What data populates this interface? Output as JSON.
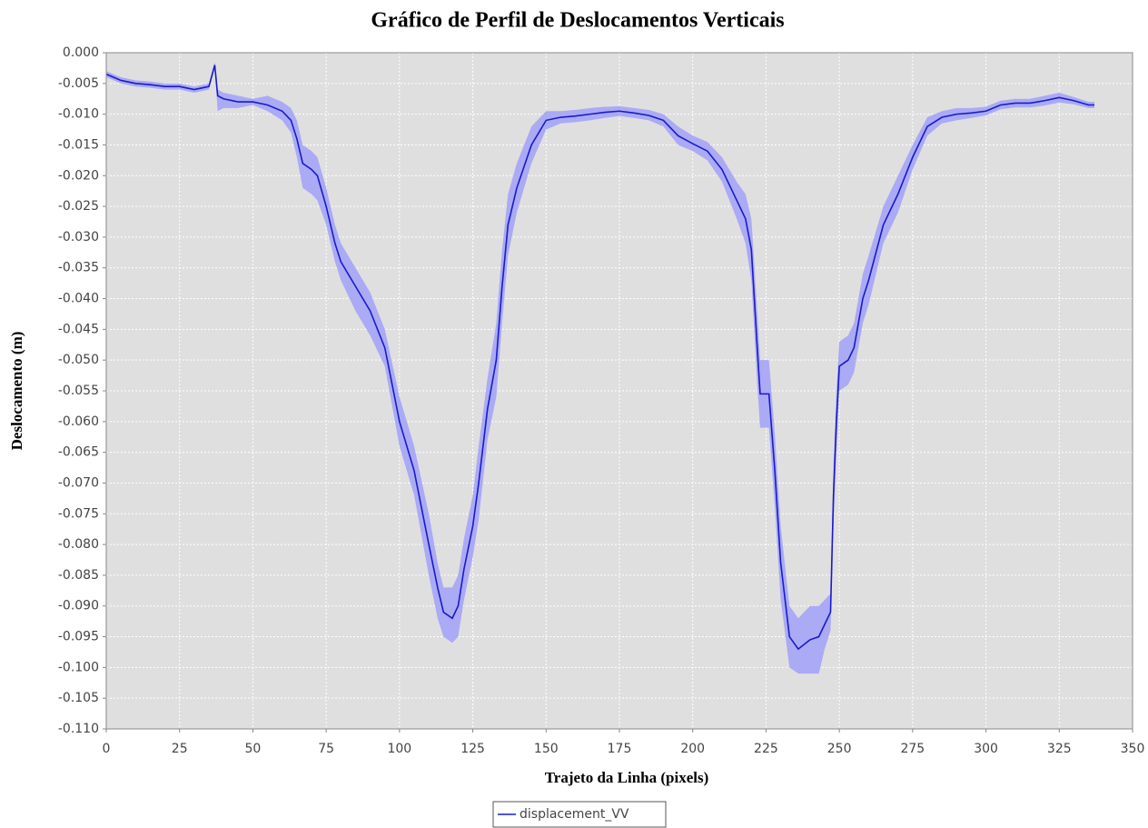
{
  "chart_data": {
    "type": "line",
    "title": "Gráfico de Perfil de Deslocamentos Verticais",
    "xlabel": "Trajeto da Linha (pixels)",
    "ylabel": "Deslocamento (m)",
    "x": [
      0,
      5,
      10,
      15,
      20,
      25,
      30,
      35,
      37,
      38,
      40,
      45,
      50,
      55,
      60,
      63,
      65,
      67,
      70,
      72,
      75,
      78,
      80,
      85,
      90,
      95,
      100,
      105,
      110,
      113,
      115,
      118,
      120,
      122,
      125,
      127,
      130,
      133,
      135,
      137,
      140,
      145,
      150,
      155,
      160,
      165,
      170,
      175,
      180,
      185,
      190,
      195,
      200,
      205,
      210,
      215,
      218,
      220,
      222,
      223,
      226,
      228,
      230,
      233,
      236,
      240,
      243,
      245,
      247,
      248,
      249,
      250,
      253,
      255,
      258,
      260,
      265,
      270,
      275,
      280,
      285,
      290,
      295,
      300,
      305,
      310,
      315,
      320,
      325,
      330,
      335,
      337
    ],
    "series": [
      {
        "name": "displacement_VV",
        "color": "#1a1acc",
        "band_color": "#aaaaf5",
        "values": [
          -0.0035,
          -0.0045,
          -0.005,
          -0.0052,
          -0.0055,
          -0.0055,
          -0.006,
          -0.0055,
          -0.002,
          -0.007,
          -0.0075,
          -0.008,
          -0.008,
          -0.0085,
          -0.0095,
          -0.011,
          -0.014,
          -0.018,
          -0.019,
          -0.02,
          -0.025,
          -0.031,
          -0.034,
          -0.038,
          -0.042,
          -0.048,
          -0.06,
          -0.068,
          -0.08,
          -0.087,
          -0.091,
          -0.092,
          -0.09,
          -0.084,
          -0.077,
          -0.07,
          -0.058,
          -0.05,
          -0.038,
          -0.028,
          -0.022,
          -0.015,
          -0.011,
          -0.0105,
          -0.0103,
          -0.01,
          -0.0097,
          -0.0095,
          -0.0098,
          -0.0102,
          -0.011,
          -0.0135,
          -0.0148,
          -0.016,
          -0.019,
          -0.024,
          -0.027,
          -0.032,
          -0.048,
          -0.0555,
          -0.0555,
          -0.068,
          -0.083,
          -0.095,
          -0.097,
          -0.0955,
          -0.095,
          -0.093,
          -0.091,
          -0.072,
          -0.06,
          -0.051,
          -0.05,
          -0.048,
          -0.04,
          -0.037,
          -0.028,
          -0.023,
          -0.017,
          -0.012,
          -0.0105,
          -0.01,
          -0.0098,
          -0.0095,
          -0.0085,
          -0.0082,
          -0.0082,
          -0.0078,
          -0.0073,
          -0.0078,
          -0.0085,
          -0.0085
        ],
        "upper": [
          -0.003,
          -0.004,
          -0.0045,
          -0.0047,
          -0.005,
          -0.005,
          -0.0055,
          -0.005,
          -0.0015,
          -0.006,
          -0.0065,
          -0.007,
          -0.0075,
          -0.007,
          -0.008,
          -0.009,
          -0.011,
          -0.015,
          -0.016,
          -0.017,
          -0.022,
          -0.028,
          -0.031,
          -0.035,
          -0.039,
          -0.045,
          -0.056,
          -0.064,
          -0.075,
          -0.083,
          -0.087,
          -0.087,
          -0.085,
          -0.079,
          -0.072,
          -0.064,
          -0.053,
          -0.044,
          -0.032,
          -0.023,
          -0.018,
          -0.012,
          -0.0095,
          -0.0095,
          -0.0093,
          -0.009,
          -0.0088,
          -0.0087,
          -0.009,
          -0.0093,
          -0.01,
          -0.012,
          -0.0135,
          -0.0145,
          -0.017,
          -0.021,
          -0.023,
          -0.027,
          -0.042,
          -0.05,
          -0.05,
          -0.062,
          -0.077,
          -0.09,
          -0.092,
          -0.09,
          -0.09,
          -0.089,
          -0.088,
          -0.067,
          -0.055,
          -0.047,
          -0.046,
          -0.044,
          -0.036,
          -0.033,
          -0.025,
          -0.02,
          -0.015,
          -0.0105,
          -0.0095,
          -0.009,
          -0.009,
          -0.0088,
          -0.0078,
          -0.0075,
          -0.0075,
          -0.007,
          -0.0065,
          -0.0072,
          -0.008,
          -0.008
        ],
        "lower": [
          -0.004,
          -0.005,
          -0.0055,
          -0.0057,
          -0.006,
          -0.006,
          -0.0065,
          -0.006,
          -0.0025,
          -0.0095,
          -0.009,
          -0.009,
          -0.0085,
          -0.0095,
          -0.011,
          -0.013,
          -0.017,
          -0.022,
          -0.023,
          -0.024,
          -0.028,
          -0.034,
          -0.037,
          -0.042,
          -0.046,
          -0.051,
          -0.064,
          -0.072,
          -0.085,
          -0.092,
          -0.095,
          -0.096,
          -0.095,
          -0.089,
          -0.082,
          -0.076,
          -0.063,
          -0.056,
          -0.044,
          -0.033,
          -0.026,
          -0.018,
          -0.0125,
          -0.0115,
          -0.0113,
          -0.011,
          -0.0106,
          -0.0103,
          -0.0106,
          -0.011,
          -0.012,
          -0.015,
          -0.016,
          -0.0175,
          -0.021,
          -0.027,
          -0.031,
          -0.037,
          -0.054,
          -0.061,
          -0.061,
          -0.074,
          -0.089,
          -0.1,
          -0.101,
          -0.101,
          -0.101,
          -0.097,
          -0.094,
          -0.077,
          -0.065,
          -0.055,
          -0.054,
          -0.052,
          -0.044,
          -0.041,
          -0.031,
          -0.026,
          -0.019,
          -0.0135,
          -0.0115,
          -0.011,
          -0.0106,
          -0.0102,
          -0.0092,
          -0.0089,
          -0.0089,
          -0.0086,
          -0.0081,
          -0.0084,
          -0.009,
          -0.009
        ]
      }
    ],
    "xlim": [
      0,
      350
    ],
    "xticks": [
      0,
      25,
      50,
      75,
      100,
      125,
      150,
      175,
      200,
      225,
      250,
      275,
      300,
      325,
      350
    ],
    "ylim": [
      -0.11,
      0
    ],
    "yticks": [
      {
        "value": 0,
        "label": "0.000"
      },
      {
        "value": -0.005,
        "label": "-0.005"
      },
      {
        "value": -0.01,
        "label": "-0.010"
      },
      {
        "value": -0.015,
        "label": "-0.015"
      },
      {
        "value": -0.02,
        "label": "-0.020"
      },
      {
        "value": -0.025,
        "label": "-0.025"
      },
      {
        "value": -0.03,
        "label": "-0.030"
      },
      {
        "value": -0.035,
        "label": "-0.035"
      },
      {
        "value": -0.04,
        "label": "-0.040"
      },
      {
        "value": -0.045,
        "label": "-0.045"
      },
      {
        "value": -0.05,
        "label": "-0.050"
      },
      {
        "value": -0.055,
        "label": "-0.055"
      },
      {
        "value": -0.06,
        "label": "-0.060"
      },
      {
        "value": -0.065,
        "label": "-0.065"
      },
      {
        "value": -0.07,
        "label": "-0.070"
      },
      {
        "value": -0.075,
        "label": "-0.075"
      },
      {
        "value": -0.08,
        "label": "-0.080"
      },
      {
        "value": -0.085,
        "label": "-0.085"
      },
      {
        "value": -0.09,
        "label": "-0.090"
      },
      {
        "value": -0.095,
        "label": "-0.095"
      },
      {
        "value": -0.1,
        "label": "-0.100"
      },
      {
        "value": -0.105,
        "label": "-0.105"
      },
      {
        "value": -0.11,
        "label": "-0.110"
      }
    ],
    "grid": true,
    "legend": "bottom"
  }
}
